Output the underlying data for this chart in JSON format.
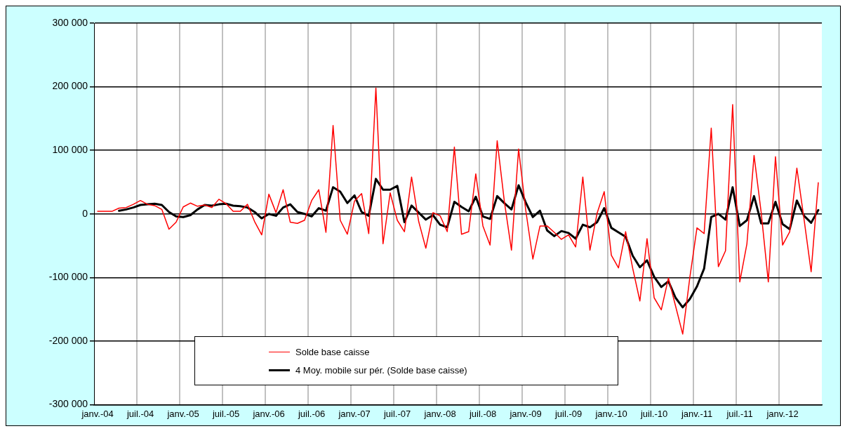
{
  "chart_data": {
    "type": "line",
    "categories": [
      "janv.-04",
      null,
      null,
      null,
      null,
      null,
      "juil.-04",
      null,
      null,
      null,
      null,
      null,
      "janv.-05",
      null,
      null,
      null,
      null,
      null,
      "juil.-05",
      null,
      null,
      null,
      null,
      null,
      "janv.-06",
      null,
      null,
      null,
      null,
      null,
      "juil.-06",
      null,
      null,
      null,
      null,
      null,
      "janv.-07",
      null,
      null,
      null,
      null,
      null,
      "juil.-07",
      null,
      null,
      null,
      null,
      null,
      "janv.-08",
      null,
      null,
      null,
      null,
      null,
      "juil.-08",
      null,
      null,
      null,
      null,
      null,
      "janv.-09",
      null,
      null,
      null,
      null,
      null,
      "juil.-09",
      null,
      null,
      null,
      null,
      null,
      "janv.-10",
      null,
      null,
      null,
      null,
      null,
      "juil.-10",
      null,
      null,
      null,
      null,
      null,
      "janv.-11",
      null,
      null,
      null,
      null,
      null,
      "juil.-11",
      null,
      null,
      null,
      null,
      null,
      "janv.-12",
      null,
      null,
      null,
      null,
      null
    ],
    "series": [
      {
        "name": "Solde base caisse",
        "color": "#ff0000",
        "values": [
          4000,
          4000,
          4000,
          9000,
          10000,
          15000,
          21000,
          15000,
          13000,
          7000,
          -24000,
          -13000,
          11000,
          17000,
          12000,
          14000,
          10000,
          23000,
          16000,
          4000,
          4000,
          15000,
          -12000,
          -33000,
          31000,
          2000,
          38000,
          -13000,
          -15000,
          -10000,
          21000,
          38000,
          -29000,
          139000,
          -10000,
          -32000,
          20000,
          32000,
          -31000,
          198000,
          -47000,
          33000,
          -10000,
          -28000,
          58000,
          -12000,
          -54000,
          2000,
          -3000,
          -28000,
          105000,
          -32000,
          -28000,
          63000,
          -19000,
          -49000,
          115000,
          20000,
          -57000,
          102000,
          6000,
          -71000,
          -19000,
          -19000,
          -29000,
          -40000,
          -33000,
          -52000,
          58000,
          -57000,
          1000,
          35000,
          -65000,
          -85000,
          -28000,
          -86000,
          -137000,
          -39000,
          -132000,
          -151000,
          -101000,
          -145000,
          -189000,
          -100000,
          -22000,
          -31000,
          135000,
          -83000,
          -58000,
          172000,
          -107000,
          -47000,
          92000,
          2000,
          -107000,
          90000,
          -49000,
          -28000,
          72000,
          -8000,
          -91000,
          49000
        ]
      },
      {
        "name": "4 Moy. mobile sur pér. (Solde base caisse)",
        "color": "#000000",
        "values": [
          null,
          null,
          null,
          5000,
          7000,
          10000,
          14000,
          15000,
          16000,
          14000,
          3000,
          -4000,
          -5000,
          -2000,
          7000,
          14000,
          13000,
          15000,
          16000,
          13000,
          12000,
          10000,
          3000,
          -7000,
          0,
          -3000,
          10000,
          15000,
          3000,
          0,
          -4000,
          9000,
          5000,
          42000,
          35000,
          17000,
          29000,
          3000,
          -3000,
          55000,
          38000,
          38000,
          44000,
          -13000,
          13000,
          2000,
          -9000,
          -2000,
          -17000,
          -21000,
          19000,
          11000,
          4000,
          27000,
          -4000,
          -8000,
          28000,
          17000,
          7000,
          45000,
          18000,
          -5000,
          5000,
          -26000,
          -35000,
          -27000,
          -30000,
          -39000,
          -17000,
          -21000,
          -13000,
          9000,
          -22000,
          -29000,
          -36000,
          -66000,
          -84000,
          -73000,
          -99000,
          -115000,
          -106000,
          -132000,
          -147000,
          -134000,
          -114000,
          -86000,
          -5000,
          0,
          -9000,
          42000,
          -19000,
          -10000,
          28000,
          -15000,
          -15000,
          19000,
          -16000,
          -24000,
          21000,
          -3000,
          -14000,
          6000
        ]
      }
    ],
    "ylim": [
      -300000,
      300000
    ],
    "yticks": [
      {
        "value": -300000,
        "label": "-300 000"
      },
      {
        "value": -200000,
        "label": "-200 000"
      },
      {
        "value": -100000,
        "label": "-100 000"
      },
      {
        "value": 0,
        "label": "0"
      },
      {
        "value": 100000,
        "label": "100 000"
      },
      {
        "value": 200000,
        "label": "200 000"
      },
      {
        "value": 300000,
        "label": "300 000"
      }
    ],
    "grid": true,
    "legend": "bottom",
    "marker": "none",
    "line_style": "solid"
  }
}
